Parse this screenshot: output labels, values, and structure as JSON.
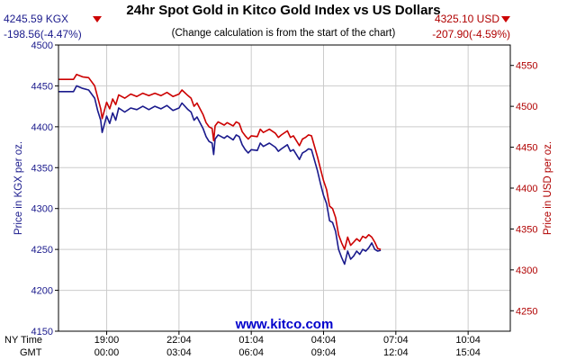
{
  "chart_data": {
    "type": "line",
    "title": "24hr Spot Gold in Kitco Gold Index vs US Dollars",
    "subtitle": "(Change calculation is from the start of the chart)",
    "watermark": "www.kitco.com",
    "left_stats": {
      "price": "4245.59 KGX",
      "change": "-198.56(-4.47%)"
    },
    "right_stats": {
      "price": "4325.10 USD",
      "change": "-207.90(-4.59%)"
    },
    "ylabel_left": "Price in KGX per oz.",
    "ylabel_right": "Price in USD per oz.",
    "ylim_left": [
      4150,
      4500
    ],
    "ylim_right": [
      4225,
      4575
    ],
    "yticks_left": [
      "4150",
      "4200",
      "4250",
      "4300",
      "4350",
      "4400",
      "4450",
      "4500"
    ],
    "yticks_right": [
      "4250",
      "4300",
      "4350",
      "4400",
      "4450",
      "4500",
      "4550"
    ],
    "xlabel_rows": [
      "NY Time",
      "GMT"
    ],
    "xticks": [
      {
        "t": 0.16,
        "ny": "19:00",
        "gmt": "00:00"
      },
      {
        "t": 0.4,
        "ny": "22:04",
        "gmt": "03:04"
      },
      {
        "t": 0.64,
        "ny": "01:04",
        "gmt": "06:04"
      },
      {
        "t": 0.88,
        "ny": "04:04",
        "gmt": "09:04"
      },
      {
        "t": 1.12,
        "ny": "07:04",
        "gmt": "12:04"
      },
      {
        "t": 1.36,
        "ny": "10:04",
        "gmt": "15:04"
      }
    ],
    "grid": true,
    "x_range": [
      0,
      1.5
    ],
    "series": [
      {
        "name": "KGX",
        "axis": "left",
        "color": "#1a1a8c",
        "points": [
          [
            0.0,
            4443
          ],
          [
            0.05,
            4443
          ],
          [
            0.06,
            4450
          ],
          [
            0.08,
            4447
          ],
          [
            0.1,
            4445
          ],
          [
            0.12,
            4435
          ],
          [
            0.13,
            4420
          ],
          [
            0.14,
            4408
          ],
          [
            0.145,
            4393
          ],
          [
            0.16,
            4413
          ],
          [
            0.17,
            4404
          ],
          [
            0.18,
            4417
          ],
          [
            0.19,
            4408
          ],
          [
            0.2,
            4423
          ],
          [
            0.22,
            4418
          ],
          [
            0.24,
            4423
          ],
          [
            0.26,
            4421
          ],
          [
            0.28,
            4425
          ],
          [
            0.3,
            4421
          ],
          [
            0.32,
            4425
          ],
          [
            0.34,
            4422
          ],
          [
            0.36,
            4426
          ],
          [
            0.38,
            4420
          ],
          [
            0.4,
            4423
          ],
          [
            0.41,
            4429
          ],
          [
            0.43,
            4421
          ],
          [
            0.44,
            4418
          ],
          [
            0.45,
            4408
          ],
          [
            0.46,
            4412
          ],
          [
            0.48,
            4398
          ],
          [
            0.49,
            4388
          ],
          [
            0.5,
            4382
          ],
          [
            0.51,
            4380
          ],
          [
            0.515,
            4366
          ],
          [
            0.52,
            4385
          ],
          [
            0.53,
            4390
          ],
          [
            0.55,
            4386
          ],
          [
            0.56,
            4389
          ],
          [
            0.58,
            4384
          ],
          [
            0.59,
            4390
          ],
          [
            0.6,
            4388
          ],
          [
            0.61,
            4378
          ],
          [
            0.62,
            4372
          ],
          [
            0.63,
            4368
          ],
          [
            0.64,
            4372
          ],
          [
            0.66,
            4371
          ],
          [
            0.67,
            4380
          ],
          [
            0.68,
            4376
          ],
          [
            0.7,
            4380
          ],
          [
            0.72,
            4375
          ],
          [
            0.73,
            4370
          ],
          [
            0.74,
            4373
          ],
          [
            0.76,
            4378
          ],
          [
            0.77,
            4370
          ],
          [
            0.78,
            4372
          ],
          [
            0.8,
            4360
          ],
          [
            0.81,
            4368
          ],
          [
            0.82,
            4370
          ],
          [
            0.83,
            4373
          ],
          [
            0.84,
            4372
          ],
          [
            0.86,
            4346
          ],
          [
            0.87,
            4330
          ],
          [
            0.88,
            4316
          ],
          [
            0.89,
            4306
          ],
          [
            0.9,
            4285
          ],
          [
            0.91,
            4283
          ],
          [
            0.92,
            4272
          ],
          [
            0.93,
            4250
          ],
          [
            0.94,
            4240
          ],
          [
            0.95,
            4232
          ],
          [
            0.96,
            4248
          ],
          [
            0.97,
            4238
          ],
          [
            0.98,
            4242
          ],
          [
            0.99,
            4248
          ],
          [
            1.0,
            4244
          ],
          [
            1.01,
            4250
          ],
          [
            1.02,
            4248
          ],
          [
            1.03,
            4252
          ],
          [
            1.04,
            4258
          ],
          [
            1.05,
            4250
          ],
          [
            1.06,
            4248
          ],
          [
            1.07,
            4249
          ]
        ]
      },
      {
        "name": "USD",
        "axis": "right",
        "color": "#cc0000",
        "points": [
          [
            0.0,
            4533
          ],
          [
            0.05,
            4533
          ],
          [
            0.06,
            4539
          ],
          [
            0.08,
            4536
          ],
          [
            0.1,
            4535
          ],
          [
            0.12,
            4525
          ],
          [
            0.13,
            4511
          ],
          [
            0.14,
            4497
          ],
          [
            0.145,
            4485
          ],
          [
            0.16,
            4505
          ],
          [
            0.17,
            4497
          ],
          [
            0.18,
            4509
          ],
          [
            0.19,
            4502
          ],
          [
            0.2,
            4514
          ],
          [
            0.22,
            4510
          ],
          [
            0.24,
            4515
          ],
          [
            0.26,
            4512
          ],
          [
            0.28,
            4516
          ],
          [
            0.3,
            4513
          ],
          [
            0.32,
            4516
          ],
          [
            0.34,
            4513
          ],
          [
            0.36,
            4517
          ],
          [
            0.38,
            4512
          ],
          [
            0.4,
            4515
          ],
          [
            0.41,
            4520
          ],
          [
            0.43,
            4513
          ],
          [
            0.44,
            4510
          ],
          [
            0.45,
            4500
          ],
          [
            0.46,
            4504
          ],
          [
            0.48,
            4490
          ],
          [
            0.49,
            4480
          ],
          [
            0.5,
            4475
          ],
          [
            0.51,
            4473
          ],
          [
            0.515,
            4458
          ],
          [
            0.52,
            4476
          ],
          [
            0.53,
            4481
          ],
          [
            0.55,
            4477
          ],
          [
            0.56,
            4480
          ],
          [
            0.58,
            4476
          ],
          [
            0.59,
            4481
          ],
          [
            0.6,
            4479
          ],
          [
            0.61,
            4469
          ],
          [
            0.62,
            4464
          ],
          [
            0.63,
            4460
          ],
          [
            0.64,
            4464
          ],
          [
            0.66,
            4463
          ],
          [
            0.67,
            4472
          ],
          [
            0.68,
            4468
          ],
          [
            0.7,
            4472
          ],
          [
            0.72,
            4467
          ],
          [
            0.73,
            4462
          ],
          [
            0.74,
            4465
          ],
          [
            0.76,
            4470
          ],
          [
            0.77,
            4462
          ],
          [
            0.78,
            4464
          ],
          [
            0.8,
            4452
          ],
          [
            0.81,
            4460
          ],
          [
            0.82,
            4462
          ],
          [
            0.83,
            4465
          ],
          [
            0.84,
            4464
          ],
          [
            0.86,
            4438
          ],
          [
            0.87,
            4423
          ],
          [
            0.88,
            4409
          ],
          [
            0.89,
            4398
          ],
          [
            0.9,
            4378
          ],
          [
            0.91,
            4375
          ],
          [
            0.92,
            4364
          ],
          [
            0.93,
            4343
          ],
          [
            0.94,
            4333
          ],
          [
            0.95,
            4325
          ],
          [
            0.96,
            4340
          ],
          [
            0.97,
            4330
          ],
          [
            0.98,
            4334
          ],
          [
            0.99,
            4338
          ],
          [
            1.0,
            4335
          ],
          [
            1.01,
            4341
          ],
          [
            1.02,
            4339
          ],
          [
            1.03,
            4343
          ],
          [
            1.04,
            4340
          ],
          [
            1.05,
            4334
          ],
          [
            1.06,
            4326
          ],
          [
            1.07,
            4325
          ]
        ]
      }
    ]
  }
}
